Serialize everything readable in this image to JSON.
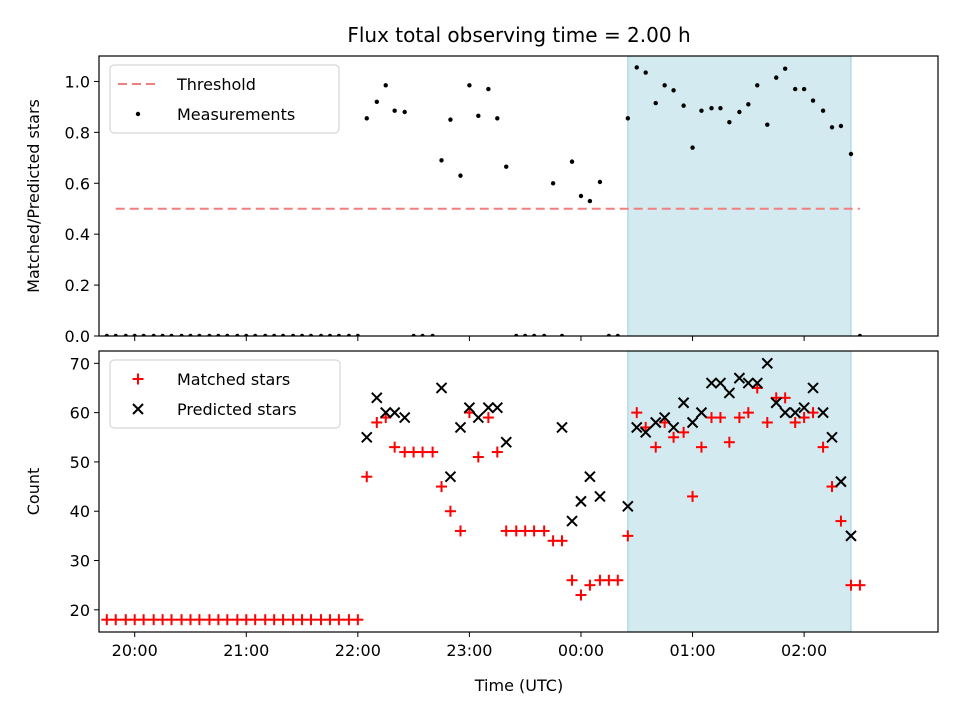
{
  "chart_data": {
    "type": "scatter",
    "title": "Flux total observing time = 2.00 h",
    "xlabel": "Time (UTC)",
    "x_tick_labels": [
      "20:00",
      "21:00",
      "22:00",
      "23:00",
      "00:00",
      "01:00",
      "02:00"
    ],
    "x_tick_hours": [
      20,
      21,
      22,
      23,
      24,
      25,
      26
    ],
    "xlim_hours": [
      19.68,
      27.2
    ],
    "highlight_span_hours": [
      24.42,
      26.42
    ],
    "colors": {
      "highlight": "#d3ebf0",
      "highlight_edge": "#9fd0dc",
      "threshold": "#f08080",
      "matched": "#ff0000",
      "predicted": "#000000",
      "measurement": "#000000"
    },
    "panels": [
      {
        "ylabel": "Matched/Predicted stars",
        "ylim": [
          0,
          1.1
        ],
        "y_ticks": [
          "0.0",
          "0.2",
          "0.4",
          "0.6",
          "0.8",
          "1.0"
        ],
        "y_tick_values": [
          0,
          0.2,
          0.4,
          0.6,
          0.8,
          1.0
        ],
        "legend_position": "upper-left",
        "series": [
          {
            "name": "Threshold",
            "kind": "dashed-line",
            "x": [
              19.83,
              26.5
            ],
            "y": [
              0.5,
              0.5
            ]
          },
          {
            "name": "Measurements",
            "kind": "dots",
            "x": [
              19.75,
              19.83,
              19.92,
              20.0,
              20.08,
              20.17,
              20.25,
              20.33,
              20.42,
              20.5,
              20.58,
              20.67,
              20.75,
              20.83,
              20.92,
              21.0,
              21.08,
              21.17,
              21.25,
              21.33,
              21.42,
              21.5,
              21.58,
              21.67,
              21.75,
              21.83,
              21.92,
              22.0,
              22.08,
              22.17,
              22.25,
              22.33,
              22.42,
              22.5,
              22.58,
              22.67,
              22.75,
              22.83,
              22.92,
              23.0,
              23.08,
              23.17,
              23.25,
              23.33,
              23.42,
              23.5,
              23.58,
              23.67,
              23.75,
              23.83,
              23.92,
              24.0,
              24.08,
              24.17,
              24.25,
              24.33,
              24.42,
              24.5,
              24.58,
              24.67,
              24.75,
              24.83,
              24.92,
              25.0,
              25.08,
              25.17,
              25.25,
              25.33,
              25.42,
              25.5,
              25.58,
              25.67,
              25.75,
              25.83,
              25.92,
              26.0,
              26.08,
              26.17,
              26.25,
              26.33,
              26.42,
              26.5
            ],
            "y": [
              0,
              0,
              0,
              0,
              0,
              0,
              0,
              0,
              0,
              0,
              0,
              0,
              0,
              0,
              0,
              0,
              0,
              0,
              0,
              0,
              0,
              0,
              0,
              0,
              0,
              0,
              0,
              0,
              0.855,
              0.92,
              0.985,
              0.885,
              0.88,
              0,
              0,
              0,
              0.69,
              0.85,
              0.63,
              0.985,
              0.865,
              0.97,
              0.855,
              0.665,
              0,
              0,
              0,
              0,
              0.6,
              0,
              0.685,
              0.55,
              0.53,
              0.605,
              0,
              0,
              0.855,
              1.055,
              1.035,
              0.915,
              0.985,
              0.965,
              0.905,
              0.74,
              0.885,
              0.895,
              0.895,
              0.84,
              0.88,
              0.91,
              0.985,
              0.83,
              1.015,
              1.05,
              0.97,
              0.97,
              0.925,
              0.885,
              0.82,
              0.825,
              0.715,
              0
            ]
          }
        ]
      },
      {
        "ylabel": "Count",
        "ylim": [
          15.5,
          72.5
        ],
        "y_ticks": [
          "20",
          "30",
          "40",
          "50",
          "60",
          "70"
        ],
        "y_tick_values": [
          20,
          30,
          40,
          50,
          60,
          70
        ],
        "legend_position": "upper-left",
        "series": [
          {
            "name": "Matched stars",
            "kind": "plus",
            "x": [
              19.75,
              19.83,
              19.92,
              20.0,
              20.08,
              20.17,
              20.25,
              20.33,
              20.42,
              20.5,
              20.58,
              20.67,
              20.75,
              20.83,
              20.92,
              21.0,
              21.08,
              21.17,
              21.25,
              21.33,
              21.42,
              21.5,
              21.58,
              21.67,
              21.75,
              21.83,
              21.92,
              22.0,
              22.08,
              22.17,
              22.25,
              22.33,
              22.42,
              22.5,
              22.58,
              22.67,
              22.75,
              22.83,
              22.92,
              23.0,
              23.08,
              23.17,
              23.25,
              23.33,
              23.42,
              23.5,
              23.58,
              23.67,
              23.75,
              23.83,
              23.92,
              24.0,
              24.08,
              24.17,
              24.25,
              24.33,
              24.42,
              24.5,
              24.58,
              24.67,
              24.75,
              24.83,
              24.92,
              25.0,
              25.08,
              25.17,
              25.25,
              25.33,
              25.42,
              25.5,
              25.58,
              25.67,
              25.75,
              25.83,
              25.92,
              26.0,
              26.08,
              26.17,
              26.25,
              26.33,
              26.42,
              26.5
            ],
            "y": [
              18,
              18,
              18,
              18,
              18,
              18,
              18,
              18,
              18,
              18,
              18,
              18,
              18,
              18,
              18,
              18,
              18,
              18,
              18,
              18,
              18,
              18,
              18,
              18,
              18,
              18,
              18,
              18,
              47,
              58,
              59,
              53,
              52,
              52,
              52,
              52,
              45,
              40,
              36,
              60,
              51,
              59,
              52,
              36,
              36,
              36,
              36,
              36,
              34,
              34,
              26,
              23,
              25,
              26,
              26,
              26,
              35,
              60,
              57,
              53,
              58,
              55,
              56,
              43,
              53,
              59,
              59,
              54,
              59,
              60,
              65,
              58,
              63,
              63,
              58,
              59,
              60,
              53,
              45,
              38,
              25,
              25
            ]
          },
          {
            "name": "Predicted stars",
            "kind": "x",
            "x": [
              22.08,
              22.17,
              22.25,
              22.33,
              22.42,
              22.75,
              22.83,
              22.92,
              23.0,
              23.08,
              23.17,
              23.25,
              23.33,
              23.83,
              23.92,
              24.0,
              24.08,
              24.17,
              24.42,
              24.5,
              24.58,
              24.67,
              24.75,
              24.83,
              24.92,
              25.0,
              25.08,
              25.17,
              25.25,
              25.33,
              25.42,
              25.5,
              25.58,
              25.67,
              25.75,
              25.83,
              25.92,
              26.0,
              26.08,
              26.17,
              26.25,
              26.33,
              26.42
            ],
            "y": [
              55,
              63,
              60,
              60,
              59,
              65,
              47,
              57,
              61,
              59,
              61,
              61,
              54,
              57,
              38,
              42,
              47,
              43,
              41,
              57,
              56,
              58,
              59,
              57,
              62,
              58,
              60,
              66,
              66,
              64,
              67,
              66,
              66,
              70,
              62,
              60,
              60,
              61,
              65,
              60,
              55,
              46,
              35
            ]
          }
        ]
      }
    ]
  }
}
